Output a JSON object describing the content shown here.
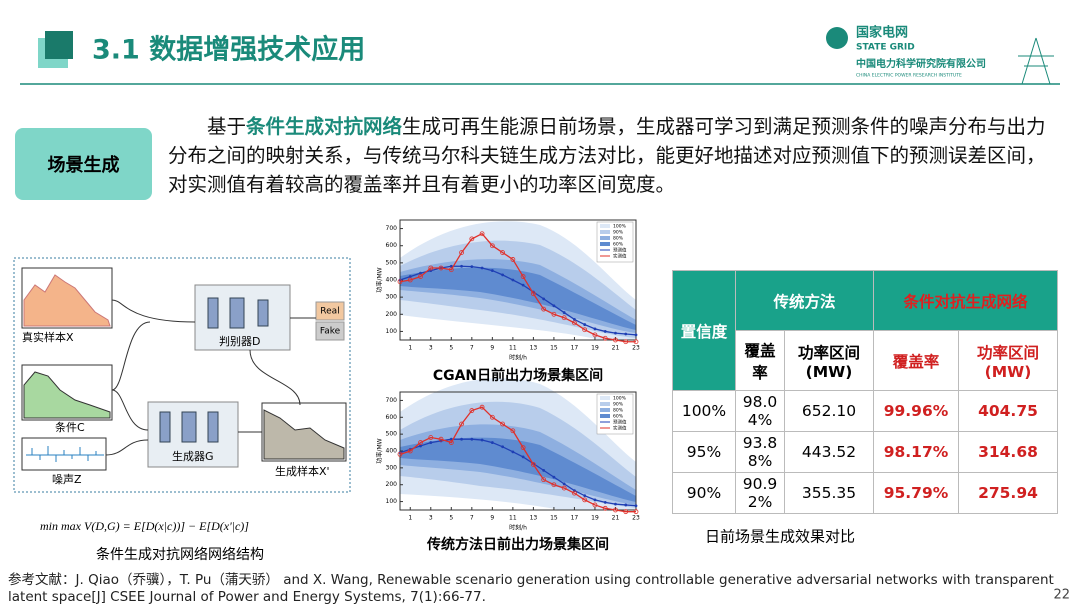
{
  "header": {
    "title": "3.1 数据增强技术应用",
    "logo_cn": "国家电网",
    "logo_en": "STATE GRID",
    "institute_cn": "中国电力科学研究院有限公司",
    "institute_en": "CHINA ELECTRIC POWER RESEARCH INSTITUTE"
  },
  "tag": "场景生成",
  "intro": {
    "before": "基于",
    "highlight": "条件生成对抗网络",
    "after": "生成可再生能源日前场景，生成器可学习到满足预测条件的噪声分布与出力分布之间的映射关系，与传统马尔科夫链生成方法对比，能更好地描述对应预测值下的预测误差区间，对实测值有着较高的覆盖率并且有着更小的功率区间宽度。"
  },
  "diagram": {
    "real_sample": "真实样本X",
    "discriminator": "判别器D",
    "real": "Real",
    "fake": "Fake",
    "condition": "条件C",
    "generator": "生成器G",
    "noise": "噪声Z",
    "generated_sample": "生成样本X'",
    "formula": "min max V(D,G) = E[D(x|c))] − E[D(x'|c)]",
    "caption": "条件生成对抗网络网络结构"
  },
  "chart_data": [
    {
      "type": "line",
      "title": "CGAN日前出力场景集区间",
      "xlabel": "时刻/h",
      "ylabel": "功率/MW",
      "x": [
        0,
        1,
        2,
        3,
        4,
        5,
        6,
        7,
        8,
        9,
        10,
        11,
        12,
        13,
        14,
        15,
        16,
        17,
        18,
        19,
        20,
        21,
        22,
        23
      ],
      "xlim": [
        0,
        23
      ],
      "ylim": [
        50,
        750
      ],
      "xticks": [
        1,
        3,
        5,
        7,
        9,
        11,
        13,
        15,
        17,
        19,
        21,
        23
      ],
      "yticks": [
        100,
        200,
        300,
        400,
        500,
        600,
        700
      ],
      "bands": [
        {
          "name": "100%",
          "color": "#dde8f6"
        },
        {
          "name": "90%",
          "color": "#b8cdeb"
        },
        {
          "name": "80%",
          "color": "#8eafe0"
        },
        {
          "name": "60%",
          "color": "#5f8bd0"
        }
      ],
      "series": [
        {
          "name": "预测值",
          "color": "#1f3fb4",
          "values": [
            400,
            420,
            440,
            455,
            470,
            480,
            480,
            478,
            470,
            455,
            430,
            400,
            370,
            330,
            290,
            250,
            210,
            170,
            140,
            115,
            100,
            90,
            85,
            80
          ]
        },
        {
          "name": "实测值",
          "color": "#e0302a",
          "values": [
            390,
            400,
            420,
            470,
            470,
            460,
            560,
            640,
            670,
            600,
            560,
            520,
            420,
            320,
            230,
            200,
            180,
            150,
            110,
            80,
            60,
            50,
            40,
            40
          ]
        }
      ]
    },
    {
      "type": "line",
      "title": "传统方法日前出力场景集区间",
      "xlabel": "时刻/h",
      "ylabel": "功率/MW",
      "x": [
        0,
        1,
        2,
        3,
        4,
        5,
        6,
        7,
        8,
        9,
        10,
        11,
        12,
        13,
        14,
        15,
        16,
        17,
        18,
        19,
        20,
        21,
        22,
        23
      ],
      "xlim": [
        0,
        23
      ],
      "ylim": [
        50,
        750
      ],
      "xticks": [
        1,
        3,
        5,
        7,
        9,
        11,
        13,
        15,
        17,
        19,
        21,
        23
      ],
      "yticks": [
        100,
        200,
        300,
        400,
        500,
        600,
        700
      ],
      "bands": [
        {
          "name": "100%",
          "color": "#dde8f6"
        },
        {
          "name": "90%",
          "color": "#b8cdeb"
        },
        {
          "name": "80%",
          "color": "#8eafe0"
        },
        {
          "name": "60%",
          "color": "#5f8bd0"
        }
      ],
      "series": [
        {
          "name": "预测值",
          "color": "#1f3fb4",
          "values": [
            390,
            410,
            430,
            450,
            460,
            470,
            470,
            470,
            465,
            450,
            425,
            395,
            365,
            325,
            285,
            245,
            205,
            165,
            135,
            110,
            95,
            85,
            80,
            75
          ]
        },
        {
          "name": "实测值",
          "color": "#e0302a",
          "values": [
            380,
            400,
            450,
            480,
            470,
            450,
            560,
            640,
            660,
            600,
            560,
            520,
            420,
            320,
            230,
            200,
            180,
            150,
            110,
            80,
            60,
            50,
            40,
            40
          ]
        }
      ]
    }
  ],
  "table": {
    "confidence": "置信度",
    "traditional": "传统方法",
    "cgan": "条件对抗生成网络",
    "columns": [
      "覆盖率",
      "功率区间(MW)",
      "覆盖率",
      "功率区间(MW)"
    ],
    "rows": [
      [
        "100%",
        "98.04%",
        "652.10",
        "99.96%",
        "404.75"
      ],
      [
        "95%",
        "93.88%",
        "443.52",
        "98.17%",
        "314.68"
      ],
      [
        "90%",
        "90.92%",
        "355.35",
        "95.79%",
        "275.94"
      ]
    ],
    "caption": "日前场景生成效果对比"
  },
  "reference": "参考文献：J. Qiao（乔骥），T. Pu（蒲天骄） and X. Wang, Renewable scenario generation using controllable generative adversarial networks with transparent latent space[J] CSEE Journal of Power and Energy Systems, 7(1):66-77.",
  "page_number": "22"
}
